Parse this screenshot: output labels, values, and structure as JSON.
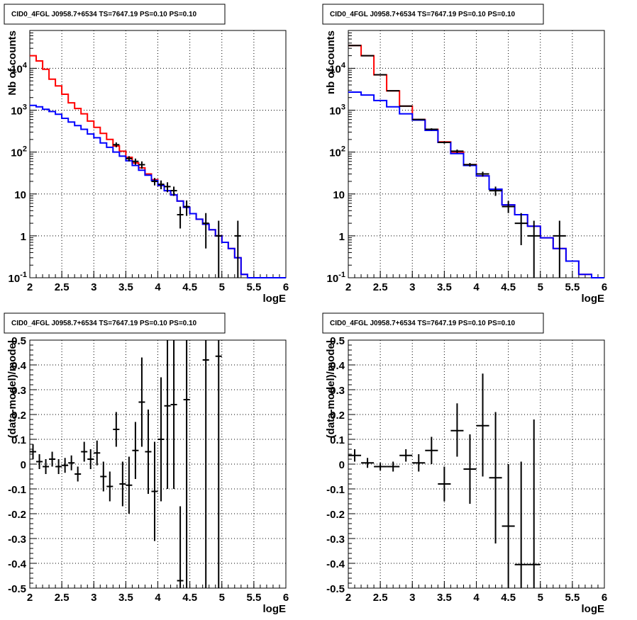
{
  "panel_title": "CID0_4FGL J0958.7+6534 TS=7647.19 PS=0.10 PS=0.10",
  "colors": {
    "model_total": "#ff0000",
    "model_source": "#0000ff",
    "data": "#000000",
    "grid": "#000000"
  },
  "chart_data": [
    {
      "type": "line",
      "title": "CID0_4FGL J0958.7+6534 TS=7647.19 PS=0.10 PS=0.10",
      "xlabel": "logE",
      "ylabel": "Nb of counts",
      "xlim": [
        2,
        6
      ],
      "ylim": [
        0.1,
        80000
      ],
      "log_y": true,
      "grid": true,
      "x_ticks": [
        "2",
        "2.5",
        "3",
        "3.5",
        "4",
        "4.5",
        "5",
        "5.5",
        "6"
      ],
      "y_ticks": [
        "10^-1",
        "1",
        "10",
        "10^2",
        "10^3",
        "10^4"
      ],
      "series": [
        {
          "kind": "hist",
          "edges": [
            2.0,
            2.1,
            2.2,
            2.3,
            2.4,
            2.5,
            2.6,
            2.7,
            2.8,
            2.9,
            3.0,
            3.1,
            3.2,
            3.3,
            3.4,
            3.5,
            3.6,
            3.7,
            3.8,
            3.9,
            4.0,
            4.1,
            4.2,
            4.3,
            4.4,
            4.5,
            4.6,
            4.7,
            4.8,
            4.9,
            5.0,
            5.1,
            5.2,
            5.3,
            5.4,
            5.5,
            5.6,
            5.7,
            5.8,
            5.9,
            6.0
          ],
          "values": [
            20000,
            15000,
            9500,
            5500,
            3800,
            2400,
            1500,
            1100,
            820,
            550,
            390,
            280,
            200,
            140,
            105,
            75,
            55,
            42,
            30,
            22,
            16,
            12,
            9.5,
            6.8,
            4.8,
            3.4,
            2.5,
            1.9,
            1.4,
            1.0,
            0.7,
            0.5,
            0.3,
            0.12,
            0.1,
            0.1,
            0.1,
            0.1,
            0.1,
            0.1
          ]
        },
        {
          "kind": "hist",
          "edges": [
            2.0,
            2.1,
            2.2,
            2.3,
            2.4,
            2.5,
            2.6,
            2.7,
            2.8,
            2.9,
            3.0,
            3.1,
            3.2,
            3.3,
            3.4,
            3.5,
            3.6,
            3.7,
            3.8,
            3.9,
            4.0,
            4.1,
            4.2,
            4.3,
            4.4,
            4.5,
            4.6,
            4.7,
            4.8,
            4.9,
            5.0,
            5.1,
            5.2,
            5.3,
            5.4,
            5.5,
            5.6,
            5.7,
            5.8,
            5.9,
            6.0
          ],
          "values": [
            1300,
            1200,
            1050,
            930,
            800,
            640,
            520,
            430,
            350,
            270,
            220,
            165,
            130,
            100,
            80,
            62,
            48,
            37,
            28,
            21,
            16,
            12,
            9.5,
            6.8,
            4.8,
            3.4,
            2.5,
            1.9,
            1.4,
            1.0,
            0.7,
            0.5,
            0.3,
            0.12,
            0.1,
            0.1,
            0.1,
            0.1,
            0.1,
            0.1
          ]
        },
        {
          "kind": "points",
          "x": [
            3.35,
            3.55,
            3.65,
            3.75,
            3.95,
            4.05,
            4.15,
            4.25,
            4.35,
            4.45,
            4.75,
            4.95,
            5.25
          ],
          "y": [
            150,
            70,
            60,
            50,
            20,
            17,
            15,
            12,
            3.2,
            5,
            2,
            1,
            1
          ],
          "ylo": [
            130,
            60,
            50,
            40,
            16,
            13,
            11,
            9,
            1.5,
            3,
            0.5,
            0.1,
            0.1
          ],
          "yhi": [
            170,
            80,
            70,
            60,
            24,
            21,
            19,
            15,
            5,
            7,
            3.5,
            2.3,
            2.3
          ]
        }
      ]
    },
    {
      "type": "line",
      "title": "CID0_4FGL J0958.7+6534 TS=7647.19 PS=0.10 PS=0.10",
      "xlabel": "logE",
      "ylabel": "nb of counts",
      "xlim": [
        2,
        6
      ],
      "ylim": [
        0.1,
        80000
      ],
      "log_y": true,
      "grid": true,
      "x_ticks": [
        "2",
        "2.5",
        "3",
        "3.5",
        "4",
        "4.5",
        "5",
        "5.5",
        "6"
      ],
      "y_ticks": [
        "10^-1",
        "1",
        "10",
        "10^2",
        "10^3",
        "10^4"
      ],
      "series": [
        {
          "kind": "hist",
          "edges": [
            2.0,
            2.2,
            2.4,
            2.6,
            2.8,
            3.0,
            3.2,
            3.4,
            3.6,
            3.8,
            4.0,
            4.2,
            4.4,
            4.6,
            4.8,
            5.0,
            5.2,
            5.4,
            5.6,
            5.8,
            6.0
          ],
          "values": [
            35000,
            20000,
            7000,
            2900,
            1250,
            600,
            350,
            175,
            100,
            50,
            27,
            13,
            5.5,
            3.2,
            1.7,
            0.9,
            0.5,
            0.25,
            0.12,
            0.1
          ]
        },
        {
          "kind": "hist",
          "edges": [
            2.0,
            2.2,
            2.4,
            2.6,
            2.8,
            3.0,
            3.2,
            3.4,
            3.6,
            3.8,
            4.0,
            4.2,
            4.4,
            4.6,
            4.8,
            5.0,
            5.2,
            5.4,
            5.6,
            5.8,
            6.0
          ],
          "values": [
            2700,
            2300,
            1700,
            1200,
            820,
            580,
            330,
            170,
            92,
            48,
            27,
            13,
            5.5,
            3.2,
            1.7,
            0.9,
            0.5,
            0.25,
            0.12,
            0.1
          ]
        },
        {
          "kind": "points",
          "x": [
            2.1,
            2.3,
            2.5,
            2.7,
            2.9,
            3.1,
            3.3,
            3.5,
            3.7,
            3.9,
            4.1,
            4.3,
            4.5,
            4.7,
            4.9,
            5.3
          ],
          "y": [
            35000,
            20000,
            7000,
            2900,
            1250,
            600,
            350,
            170,
            105,
            50,
            30,
            12,
            5,
            2,
            1,
            1
          ],
          "ylo": [
            34000,
            19700,
            6900,
            2850,
            1220,
            580,
            330,
            160,
            95,
            45,
            26,
            9,
            3.5,
            0.6,
            0.1,
            0.1
          ],
          "yhi": [
            36000,
            20300,
            7100,
            2950,
            1280,
            620,
            370,
            180,
            115,
            55,
            34,
            15,
            6.8,
            3.5,
            2.3,
            2.3
          ]
        }
      ]
    },
    {
      "type": "scatter",
      "title": "CID0_4FGL J0958.7+6534 TS=7647.19 PS=0.10 PS=0.10",
      "xlabel": "logE",
      "ylabel": "(data-model)/model",
      "xlim": [
        2,
        6
      ],
      "ylim": [
        -0.5,
        0.5
      ],
      "grid": true,
      "x_ticks": [
        "2",
        "2.5",
        "3",
        "3.5",
        "4",
        "4.5",
        "5",
        "5.5",
        "6"
      ],
      "y_ticks": [
        "-0.5",
        "-0.4",
        "-0.3",
        "-0.2",
        "-0.1",
        "0",
        "0.1",
        "0.2",
        "0.3",
        "0.4",
        "0.5"
      ],
      "points": {
        "x": [
          2.05,
          2.15,
          2.25,
          2.35,
          2.45,
          2.55,
          2.65,
          2.75,
          2.85,
          2.95,
          3.05,
          3.15,
          3.25,
          3.35,
          3.45,
          3.55,
          3.65,
          3.75,
          3.85,
          3.95,
          4.05,
          4.15,
          4.25,
          4.35,
          4.45,
          4.75,
          4.95
        ],
        "y": [
          0.05,
          0.01,
          -0.01,
          0.02,
          -0.01,
          -0.005,
          0.005,
          -0.04,
          0.05,
          0.02,
          0.045,
          -0.05,
          -0.09,
          0.14,
          -0.08,
          -0.085,
          0.055,
          0.25,
          0.05,
          -0.11,
          0.1,
          0.235,
          0.24,
          -0.47,
          0.26,
          0.42,
          0.435
        ],
        "ylo": [
          0.02,
          -0.02,
          -0.04,
          -0.01,
          -0.04,
          -0.035,
          -0.025,
          -0.07,
          0.01,
          -0.02,
          -0.005,
          -0.11,
          -0.15,
          0.07,
          -0.17,
          -0.2,
          -0.06,
          0.07,
          -0.12,
          -0.31,
          -0.15,
          -0.1,
          -0.1,
          -0.5,
          -0.5,
          -0.5,
          -0.5
        ],
        "yhi": [
          0.08,
          0.04,
          0.02,
          0.05,
          0.02,
          0.025,
          0.035,
          -0.01,
          0.09,
          0.06,
          0.095,
          0.01,
          -0.03,
          0.21,
          0.01,
          0.03,
          0.17,
          0.43,
          0.22,
          0.09,
          0.35,
          0.5,
          0.5,
          -0.17,
          0.5,
          0.5,
          0.5
        ]
      }
    },
    {
      "type": "scatter",
      "title": "CID0_4FGL J0958.7+6534 TS=7647.19 PS=0.10 PS=0.10",
      "xlabel": "logE",
      "ylabel": "(data-model)/model",
      "xlim": [
        2,
        6
      ],
      "ylim": [
        -0.5,
        0.5
      ],
      "grid": true,
      "x_ticks": [
        "2",
        "2.5",
        "3",
        "3.5",
        "4",
        "4.5",
        "5",
        "5.5",
        "6"
      ],
      "y_ticks": [
        "-0.5",
        "-0.4",
        "-0.3",
        "-0.2",
        "-0.1",
        "0",
        "0.1",
        "0.2",
        "0.3",
        "0.4",
        "0.5"
      ],
      "points": {
        "x": [
          2.1,
          2.3,
          2.5,
          2.7,
          2.9,
          3.1,
          3.3,
          3.5,
          3.7,
          3.9,
          4.1,
          4.3,
          4.5,
          4.7,
          4.9
        ],
        "y": [
          0.035,
          0.005,
          -0.01,
          -0.01,
          0.035,
          0.005,
          0.055,
          -0.08,
          0.135,
          -0.02,
          0.155,
          -0.055,
          -0.25,
          -0.405,
          -0.405
        ],
        "ylo": [
          0.01,
          -0.015,
          -0.025,
          -0.03,
          0.01,
          -0.03,
          0.0,
          -0.15,
          0.03,
          -0.16,
          -0.05,
          -0.32,
          -0.5,
          -0.5,
          -0.5
        ],
        "yhi": [
          0.06,
          0.025,
          0.005,
          0.01,
          0.06,
          0.04,
          0.11,
          -0.01,
          0.245,
          0.12,
          0.365,
          0.21,
          0.0,
          0.01,
          0.18
        ]
      }
    }
  ]
}
